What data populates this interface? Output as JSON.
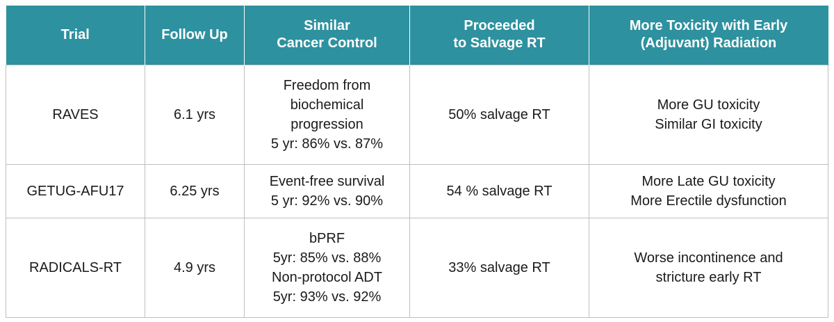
{
  "header": {
    "trial": "Trial",
    "follow_up": "Follow Up",
    "cancer_control": [
      "Similar",
      "Cancer Control"
    ],
    "salvage": [
      "Proceeded",
      "to Salvage RT"
    ],
    "toxicity": [
      "More Toxicity with Early",
      "(Adjuvant) Radiation"
    ]
  },
  "rows": [
    {
      "trial": "RAVES",
      "follow_up": "6.1 yrs",
      "cancer_control": [
        "Freedom from",
        "biochemical",
        "progression",
        "5 yr: 86% vs. 87%"
      ],
      "salvage": "50% salvage RT",
      "toxicity": [
        "More GU toxicity",
        "Similar GI toxicity"
      ]
    },
    {
      "trial": "GETUG-AFU17",
      "follow_up": "6.25 yrs",
      "cancer_control": [
        "Event-free survival",
        "5 yr: 92% vs. 90%"
      ],
      "salvage": "54 % salvage RT",
      "toxicity": [
        "More Late GU toxicity",
        "More Erectile dysfunction"
      ]
    },
    {
      "trial": "RADICALS-RT",
      "follow_up": "4.9 yrs",
      "cancer_control": [
        "bPRF",
        "5yr: 85% vs. 88%",
        "Non-protocol ADT",
        "5yr: 93% vs. 92%"
      ],
      "salvage": "33% salvage RT",
      "toxicity": [
        "Worse incontinence and",
        "stricture early RT"
      ]
    }
  ],
  "colors": {
    "header_bg": "#2e919f",
    "header_text": "#ffffff",
    "border": "#bfbfbf"
  }
}
